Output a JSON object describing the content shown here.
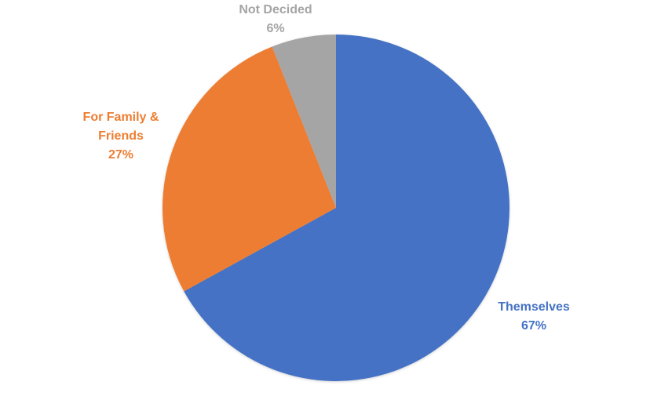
{
  "chart_data": {
    "type": "pie",
    "title": "",
    "start_angle_deg": 0,
    "direction": "clockwise",
    "legend": "none",
    "slices": [
      {
        "label_lines": [
          "Themselves"
        ],
        "percent_label": "67%",
        "value": 67,
        "color": "#4472C4"
      },
      {
        "label_lines": [
          "For Family &",
          "Friends"
        ],
        "percent_label": "27%",
        "value": 27,
        "color": "#ED7D31"
      },
      {
        "label_lines": [
          "Not Decided"
        ],
        "percent_label": "6%",
        "value": 6,
        "color": "#A5A5A5"
      }
    ]
  }
}
